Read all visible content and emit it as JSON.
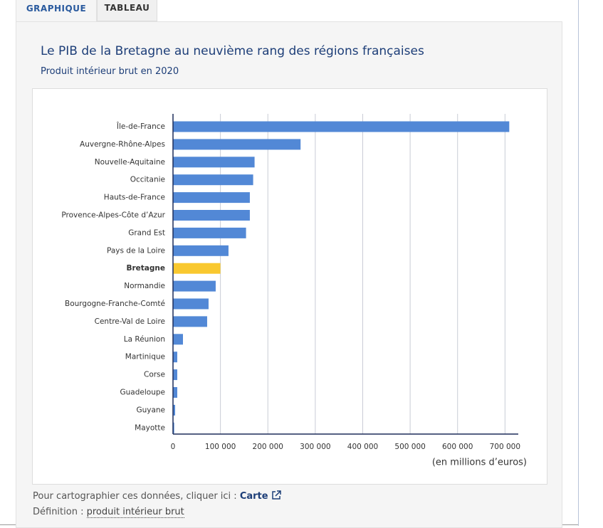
{
  "tabs": [
    "GRAPHIQUE",
    "TABLEAU"
  ],
  "chart_data": {
    "type": "bar",
    "orientation": "horizontal",
    "title": "Le PIB de la Bretagne au neuvième rang des régions françaises",
    "subtitle": "Produit intérieur brut en 2020",
    "x_label": "(en millions d’euros)",
    "categories": [
      "Île-de-France",
      "Auvergne-Rhône-Alpes",
      "Nouvelle-Aquitaine",
      "Occitanie",
      "Hauts-de-France",
      "Provence-Alpes-Côte d’Azur",
      "Grand Est",
      "Pays de la Loire",
      "Bretagne",
      "Normandie",
      "Bourgogne-Franche-Comté",
      "Centre-Val de Loire",
      "La Réunion",
      "Martinique",
      "Corse",
      "Guadeloupe",
      "Guyane",
      "Mayotte"
    ],
    "values": [
      709000,
      269000,
      172000,
      169000,
      162000,
      162000,
      154000,
      117000,
      100000,
      90000,
      75000,
      72000,
      21000,
      9000,
      9000,
      9000,
      4500,
      2500
    ],
    "colors": [
      "#5288d6",
      "#5288d6",
      "#5288d6",
      "#5288d6",
      "#5288d6",
      "#5288d6",
      "#5288d6",
      "#5288d6",
      "#f9c82f",
      "#5288d6",
      "#5288d6",
      "#5288d6",
      "#5288d6",
      "#5288d6",
      "#5288d6",
      "#5288d6",
      "#5288d6",
      "#5288d6"
    ],
    "bold_categories": [
      false,
      false,
      false,
      false,
      false,
      false,
      false,
      false,
      true,
      false,
      false,
      false,
      false,
      false,
      false,
      false,
      false,
      false
    ],
    "xlim": [
      0,
      728000
    ],
    "xticks": [
      0,
      {
        "value": 100000,
        "label": "100 000"
      },
      {
        "value": 200000,
        "label": "200 000"
      },
      {
        "value": 300000,
        "label": "300 000"
      },
      {
        "value": 400000,
        "label": "400 000"
      },
      {
        "value": 500000,
        "label": "500 000"
      },
      {
        "value": 600000,
        "label": "600 000"
      },
      {
        "value": 700000,
        "label": "700 000"
      }
    ],
    "grid": true
  },
  "footer": {
    "map_text": "Pour cartographier ces données, cliquer ici :",
    "map_link": "Carte",
    "definition_text": "Définition :",
    "definition_link": "produit intérieur brut"
  }
}
